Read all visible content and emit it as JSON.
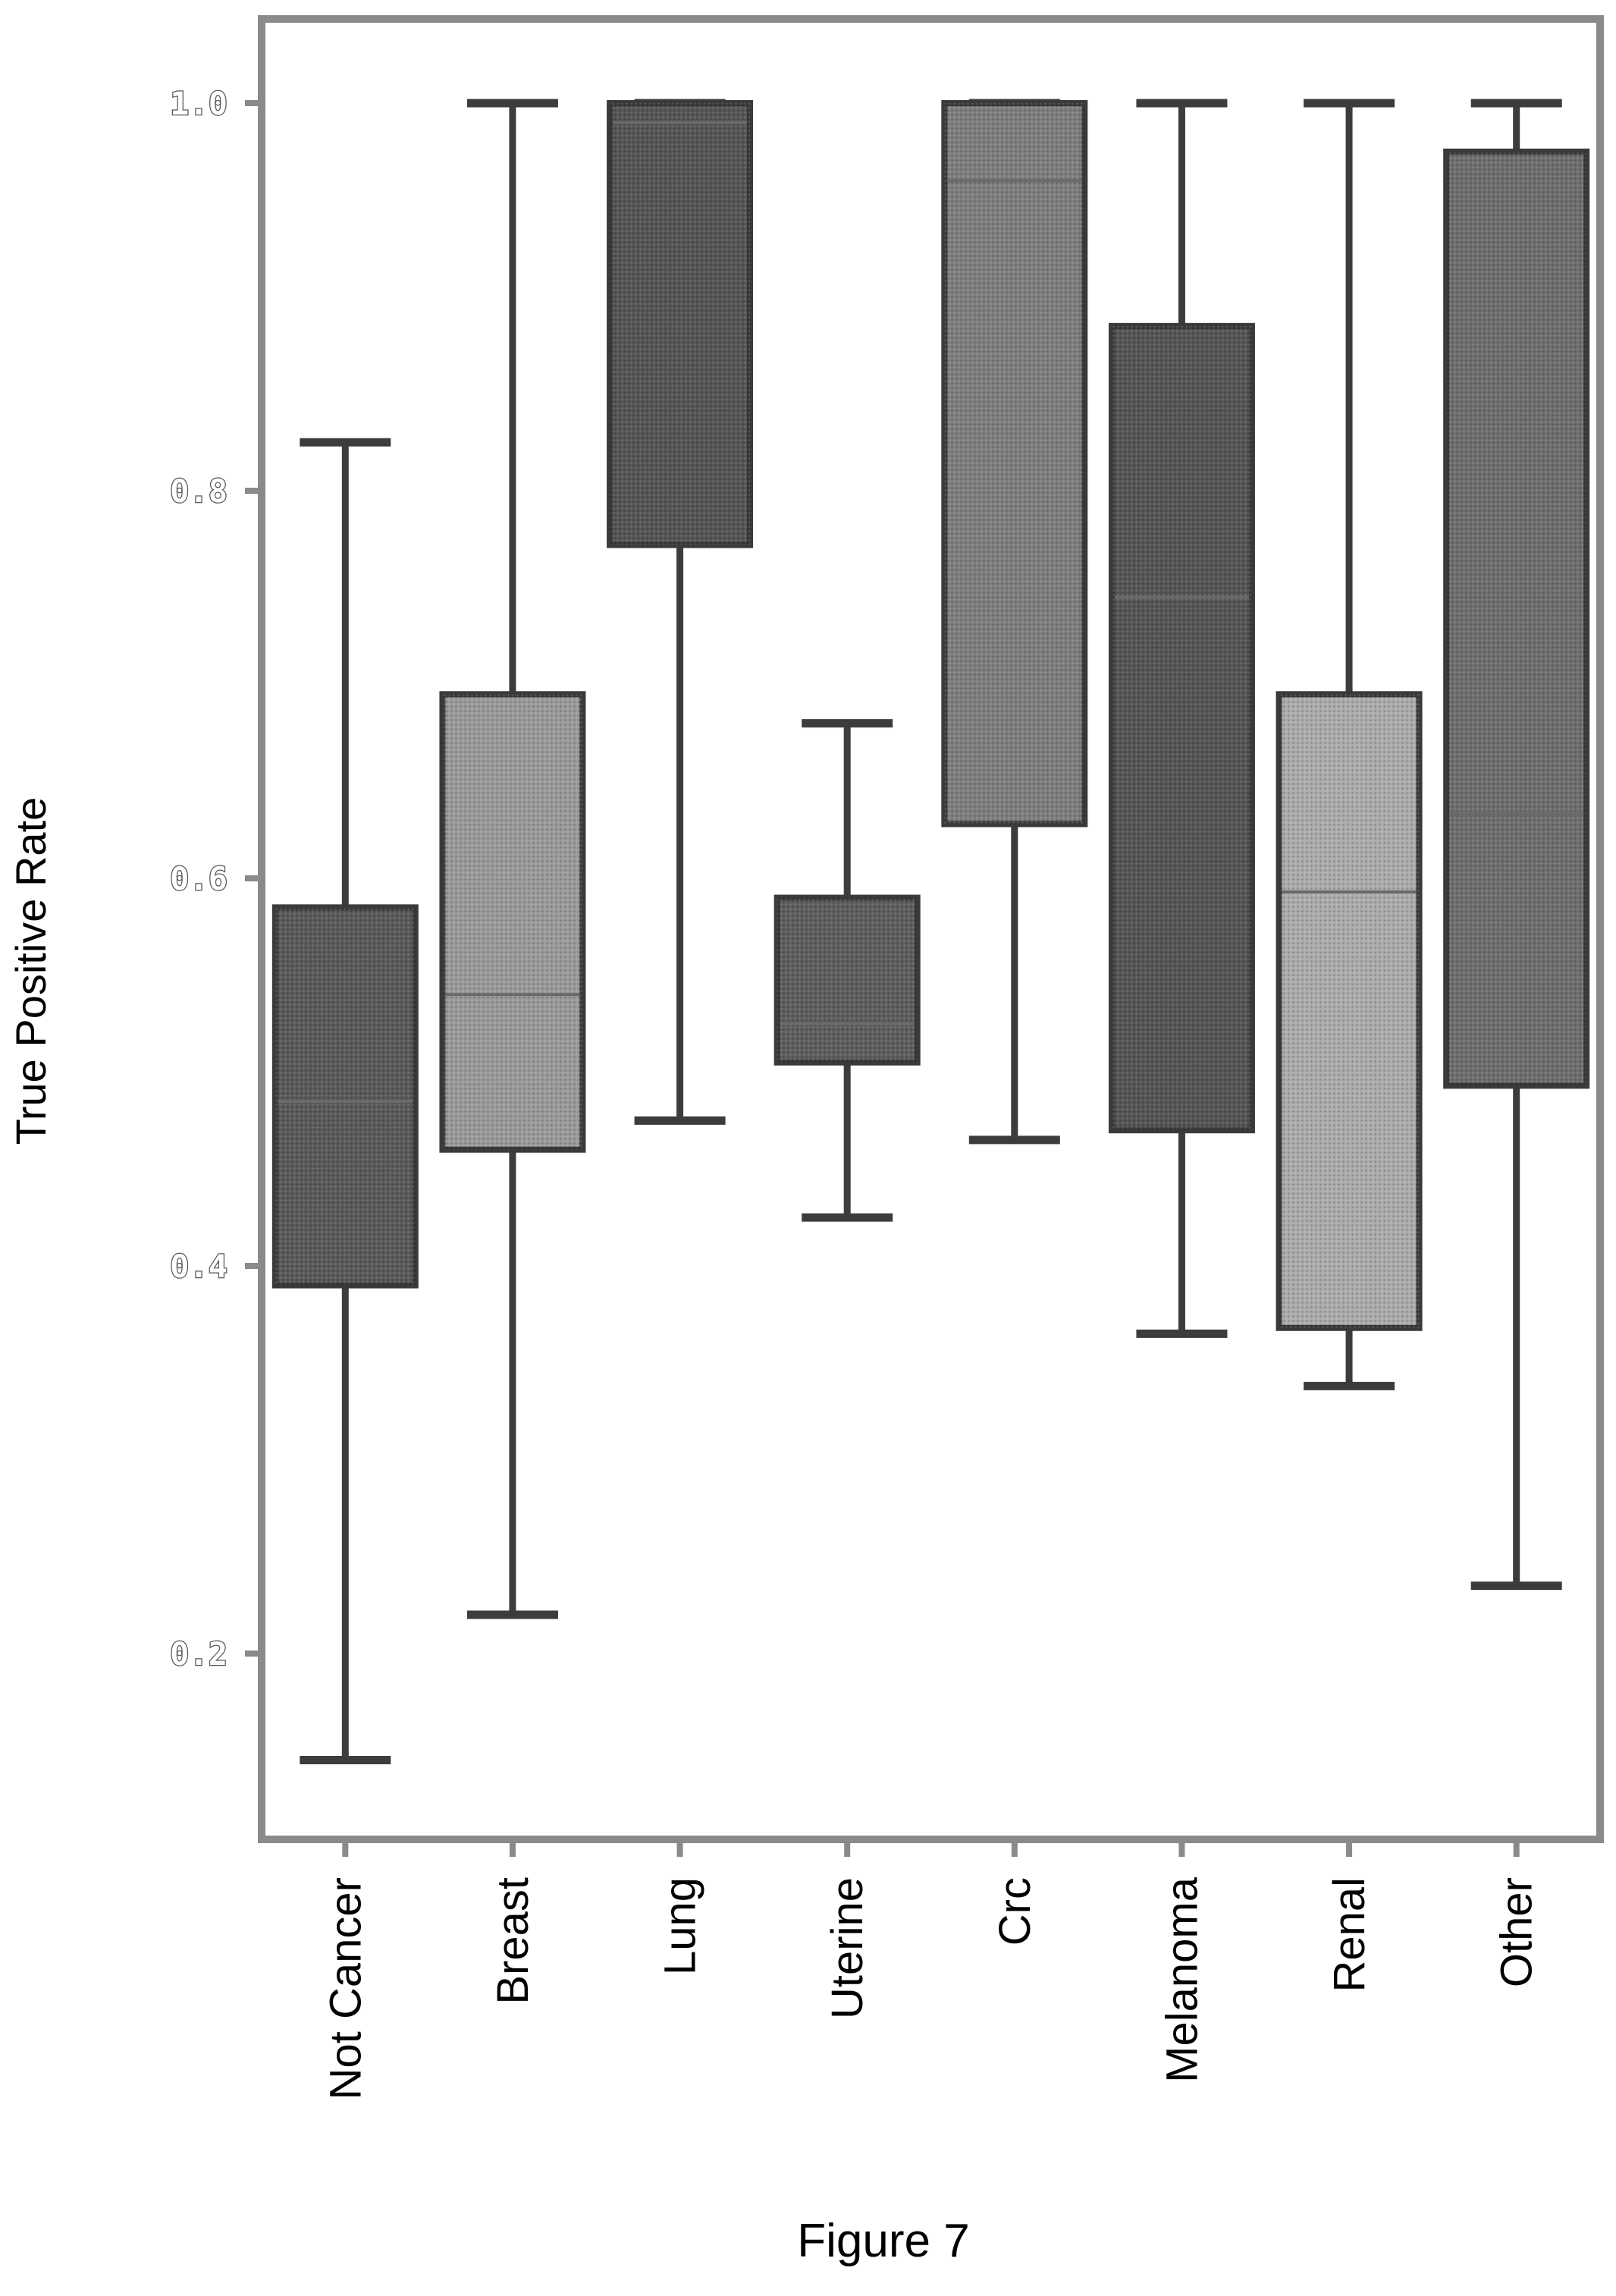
{
  "chart_data": {
    "type": "boxplot",
    "title": "",
    "xlabel": "",
    "ylabel": "True Positive Rate",
    "ylim": [
      0.12,
      1.06
    ],
    "yticks": [
      "0.2",
      "0.4",
      "0.6",
      "0.8",
      "1.0"
    ],
    "grid": false,
    "legend": "none",
    "categories": [
      "Not Cancer",
      "Breast",
      "Lung",
      "Uterine",
      "Crc",
      "Melanoma",
      "Renal",
      "Other"
    ],
    "boxes": [
      {
        "category": "Not Cancer",
        "min": 0.145,
        "q1": 0.39,
        "median": 0.485,
        "q3": 0.585,
        "max": 0.825,
        "fill": "#5a5a5a"
      },
      {
        "category": "Breast",
        "min": 0.22,
        "q1": 0.46,
        "median": 0.54,
        "q3": 0.695,
        "max": 1.0,
        "fill": "#9a9a9a"
      },
      {
        "category": "Lung",
        "min": 0.475,
        "q1": 0.772,
        "median": 0.99,
        "q3": 1.0,
        "max": 1.0,
        "fill": "#555555"
      },
      {
        "category": "Uterine",
        "min": 0.425,
        "q1": 0.505,
        "median": 0.525,
        "q3": 0.59,
        "max": 0.68,
        "fill": "#5e5e5e"
      },
      {
        "category": "Crc",
        "min": 0.465,
        "q1": 0.628,
        "median": 0.96,
        "q3": 1.0,
        "max": 1.0,
        "fill": "#7e7e7e"
      },
      {
        "category": "Melanoma",
        "min": 0.365,
        "q1": 0.47,
        "median": 0.745,
        "q3": 0.885,
        "max": 1.0,
        "fill": "#555555"
      },
      {
        "category": "Renal",
        "min": 0.338,
        "q1": 0.368,
        "median": 0.593,
        "q3": 0.695,
        "max": 1.0,
        "fill": "#ababab"
      },
      {
        "category": "Other",
        "min": 0.235,
        "q1": 0.493,
        "median": 0.633,
        "q3": 0.975,
        "max": 1.0,
        "fill": "#6e6e6e"
      }
    ]
  },
  "caption": "Figure 7"
}
